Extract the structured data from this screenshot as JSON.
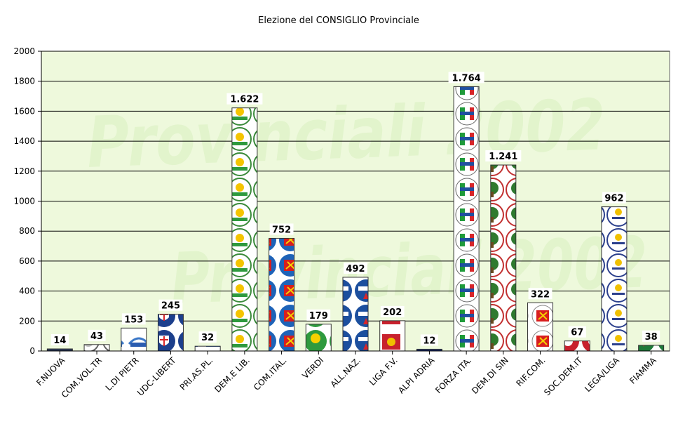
{
  "chart_data": {
    "type": "bar",
    "title": "Elezione del CONSIGLIO Provinciale",
    "watermark": "Provinciali 2002",
    "categories": [
      "F.NUOVA",
      "COM.VOL.TR",
      "L.DI PIETR",
      "UDC-LIBERT",
      "PRI.AS.PL.",
      "DEM.E LIB.",
      "COM.ITAL.",
      "VERDI",
      "ALL.NAZ.",
      "LIGA F.V.",
      "ALPI ADRIA",
      "FORZA ITA.",
      "DEM.DI SIN",
      "RIF.COM.",
      "SOC.DEM.IT",
      "LEGA/LIGA",
      "FIAMMA"
    ],
    "values": [
      14,
      43,
      153,
      245,
      32,
      1622,
      752,
      179,
      492,
      202,
      12,
      1764,
      1241,
      322,
      67,
      962,
      38
    ],
    "value_labels": [
      "14",
      "43",
      "153",
      "245",
      "32",
      "1.622",
      "752",
      "179",
      "492",
      "202",
      "12",
      "1.764",
      "1.241",
      "322",
      "67",
      "962",
      "38"
    ],
    "y_ticks": [
      "0",
      "200",
      "400",
      "600",
      "800",
      "1000",
      "1200",
      "1400",
      "1600",
      "1800",
      "2000"
    ],
    "ylim": [
      0,
      2000
    ],
    "grid": true,
    "colors": {
      "plot_background": "#eef9dc",
      "watermark": "#e2f4cc",
      "bar_fill": "#ffffff",
      "bar_stroke": "#333333",
      "gridline": "#000000"
    },
    "bar_symbols": [
      "dark-stripe",
      "grey-disc",
      "blue-logo",
      "shield-disc",
      "blue-logo",
      "sun-disc",
      "hammer-sickle-disc",
      "sun-disc-verdi",
      "blue-flame-disc",
      "lion-flag",
      "navy-disc",
      "forza-flag-disc",
      "oak-tree-disc",
      "hammer-sickle-red-disc",
      "red-disc",
      "lega-disc",
      "green-disc"
    ]
  }
}
